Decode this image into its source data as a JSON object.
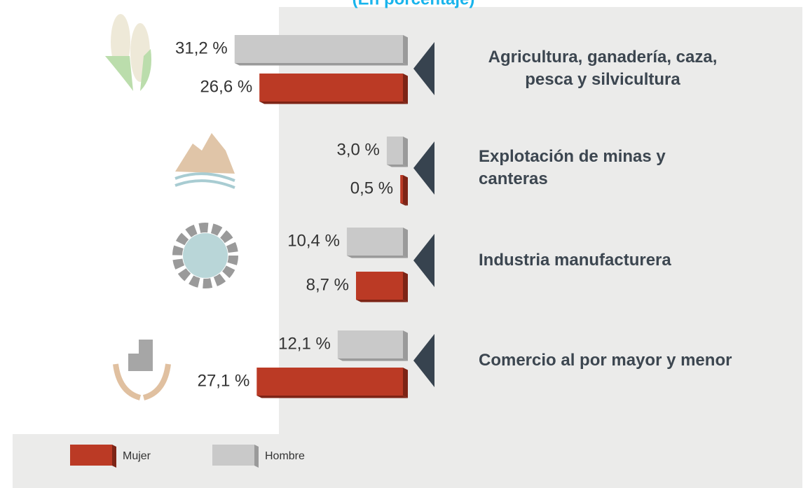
{
  "chart_data": {
    "type": "bar",
    "subtitle": "(En porcentaje)",
    "categories": [
      "Agricultura, ganadería, caza, pesca y silvicultura",
      "Explotación de minas y canteras",
      "Industria manufacturera",
      "Comercio al por mayor y menor"
    ],
    "series": [
      {
        "name": "Hombre",
        "color": "#c9c9c9",
        "values": [
          31.2,
          3.0,
          10.4,
          12.1
        ],
        "value_labels": [
          "31,2 %",
          "3,0 %",
          "10,4 %",
          "12,1 %"
        ]
      },
      {
        "name": "Mujer",
        "color": "#bb3a25",
        "values": [
          26.6,
          0.5,
          8.7,
          27.1
        ],
        "value_labels": [
          "26,6 %",
          "0,5 %",
          "8,7 %",
          "27,1 %"
        ]
      }
    ]
  }
}
